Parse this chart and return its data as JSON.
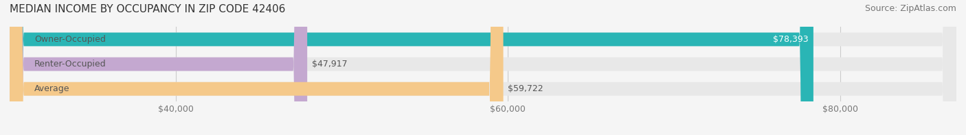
{
  "title": "MEDIAN INCOME BY OCCUPANCY IN ZIP CODE 42406",
  "source": "Source: ZipAtlas.com",
  "categories": [
    "Owner-Occupied",
    "Renter-Occupied",
    "Average"
  ],
  "values": [
    78393,
    47917,
    59722
  ],
  "bar_colors": [
    "#2ab5b5",
    "#c4a8d0",
    "#f5c98a"
  ],
  "bar_edge_colors": [
    "#2ab5b5",
    "#c4a8d0",
    "#f5c98a"
  ],
  "value_labels": [
    "$78,393",
    "$47,917",
    "$59,722"
  ],
  "xlim": [
    30000,
    87000
  ],
  "xticks": [
    40000,
    60000,
    80000
  ],
  "xtick_labels": [
    "$40,000",
    "$60,000",
    "$80,000"
  ],
  "bar_height": 0.55,
  "background_color": "#f5f5f5",
  "bar_bg_color": "#e8e8e8",
  "title_fontsize": 11,
  "source_fontsize": 9,
  "label_fontsize": 9,
  "tick_fontsize": 9
}
